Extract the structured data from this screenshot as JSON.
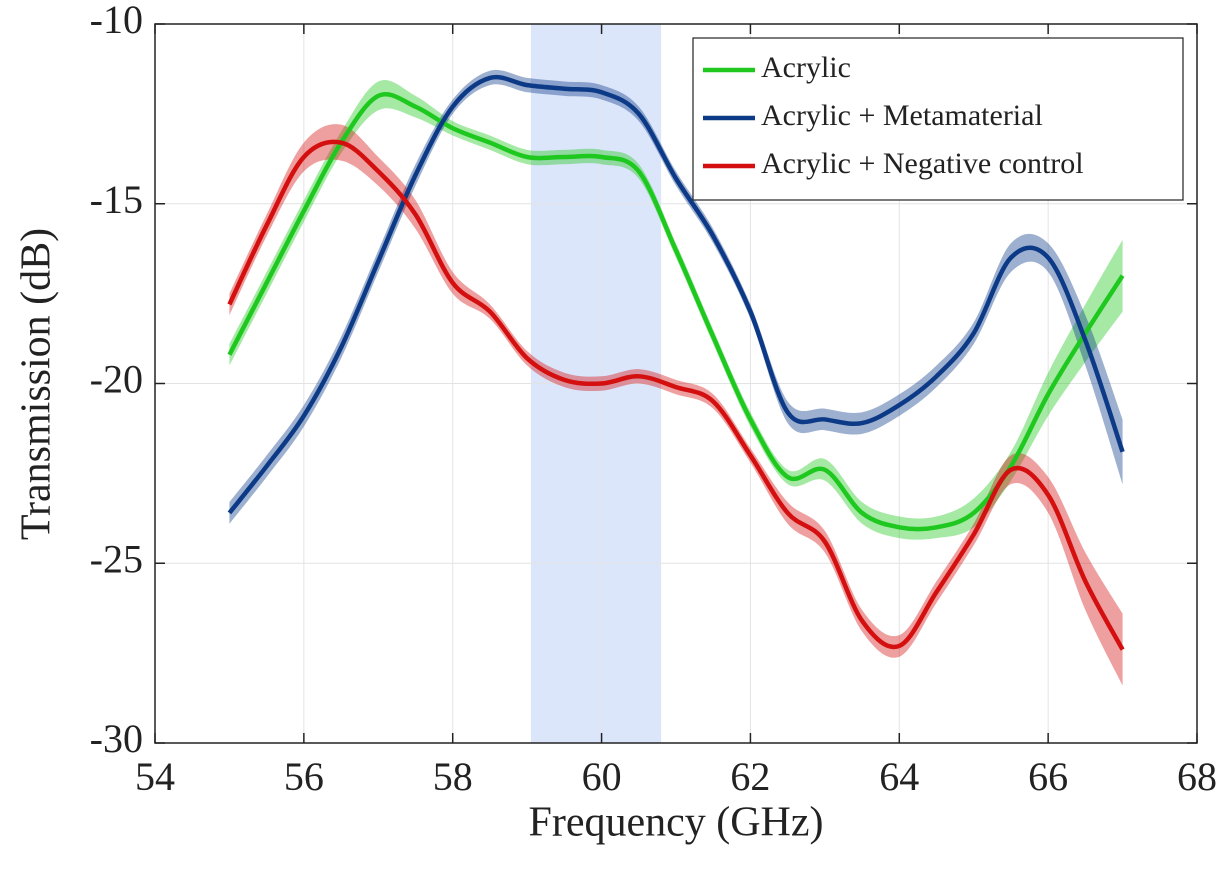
{
  "chart_data": {
    "type": "line",
    "xlabel": "Frequency (GHz)",
    "ylabel": "Transmission (dB)",
    "xlim": [
      54,
      68
    ],
    "xticks": [
      54,
      56,
      58,
      60,
      62,
      64,
      66,
      68
    ],
    "ylim": [
      -30,
      -10
    ],
    "yticks": [
      -30,
      -25,
      -20,
      -15,
      -10
    ],
    "grid": true,
    "legend": "upper right",
    "highlight": {
      "xrange": [
        59.05,
        60.8
      ],
      "color": "#dce6fb"
    },
    "x": [
      55,
      55.5,
      56,
      56.5,
      57,
      57.5,
      58,
      58.5,
      59,
      59.5,
      60,
      60.5,
      61,
      61.5,
      62,
      62.5,
      63,
      63.5,
      64,
      64.5,
      65,
      65.5,
      66,
      66.5,
      67
    ],
    "series": [
      {
        "name": "Acrylic",
        "color": "#1fc81f",
        "values": [
          -19.2,
          -17.2,
          -15.2,
          -13.3,
          -12.0,
          -12.3,
          -12.9,
          -13.3,
          -13.7,
          -13.7,
          -13.7,
          -14.1,
          -16.3,
          -18.7,
          -21.0,
          -22.6,
          -22.4,
          -23.6,
          -24.0,
          -24.0,
          -23.6,
          -22.3,
          -20.3,
          -18.6,
          -17.0
        ],
        "errors": [
          0.3,
          0.3,
          0.3,
          0.3,
          0.4,
          0.3,
          0.2,
          0.2,
          0.2,
          0.2,
          0.2,
          0.2,
          0.2,
          0.2,
          0.2,
          0.2,
          0.3,
          0.3,
          0.3,
          0.3,
          0.4,
          0.4,
          0.6,
          0.8,
          1.0
        ]
      },
      {
        "name": "Acrylic + Metamaterial",
        "color": "#0d3a87",
        "values": [
          -23.6,
          -22.3,
          -20.9,
          -19.0,
          -16.6,
          -14.2,
          -12.3,
          -11.5,
          -11.7,
          -11.8,
          -11.9,
          -12.5,
          -14.3,
          -15.9,
          -18.0,
          -20.8,
          -21.0,
          -21.1,
          -20.6,
          -19.8,
          -18.6,
          -16.5,
          -16.5,
          -18.8,
          -21.9
        ],
        "errors": [
          0.3,
          0.3,
          0.3,
          0.3,
          0.3,
          0.3,
          0.2,
          0.2,
          0.2,
          0.2,
          0.2,
          0.2,
          0.2,
          0.2,
          0.2,
          0.3,
          0.3,
          0.3,
          0.3,
          0.3,
          0.3,
          0.4,
          0.4,
          0.7,
          0.9
        ]
      },
      {
        "name": "Acrylic + Negative control",
        "color": "#d40f0f",
        "values": [
          -17.8,
          -15.6,
          -13.7,
          -13.3,
          -14.1,
          -15.3,
          -17.2,
          -18.0,
          -19.3,
          -19.9,
          -20.0,
          -19.8,
          -20.1,
          -20.5,
          -22.0,
          -23.6,
          -24.4,
          -26.6,
          -27.3,
          -25.8,
          -24.2,
          -22.4,
          -23.1,
          -25.5,
          -27.4
        ],
        "errors": [
          0.3,
          0.3,
          0.4,
          0.5,
          0.4,
          0.4,
          0.3,
          0.2,
          0.2,
          0.2,
          0.2,
          0.2,
          0.2,
          0.2,
          0.2,
          0.3,
          0.3,
          0.3,
          0.3,
          0.3,
          0.3,
          0.4,
          0.5,
          0.8,
          1.0
        ]
      }
    ]
  }
}
